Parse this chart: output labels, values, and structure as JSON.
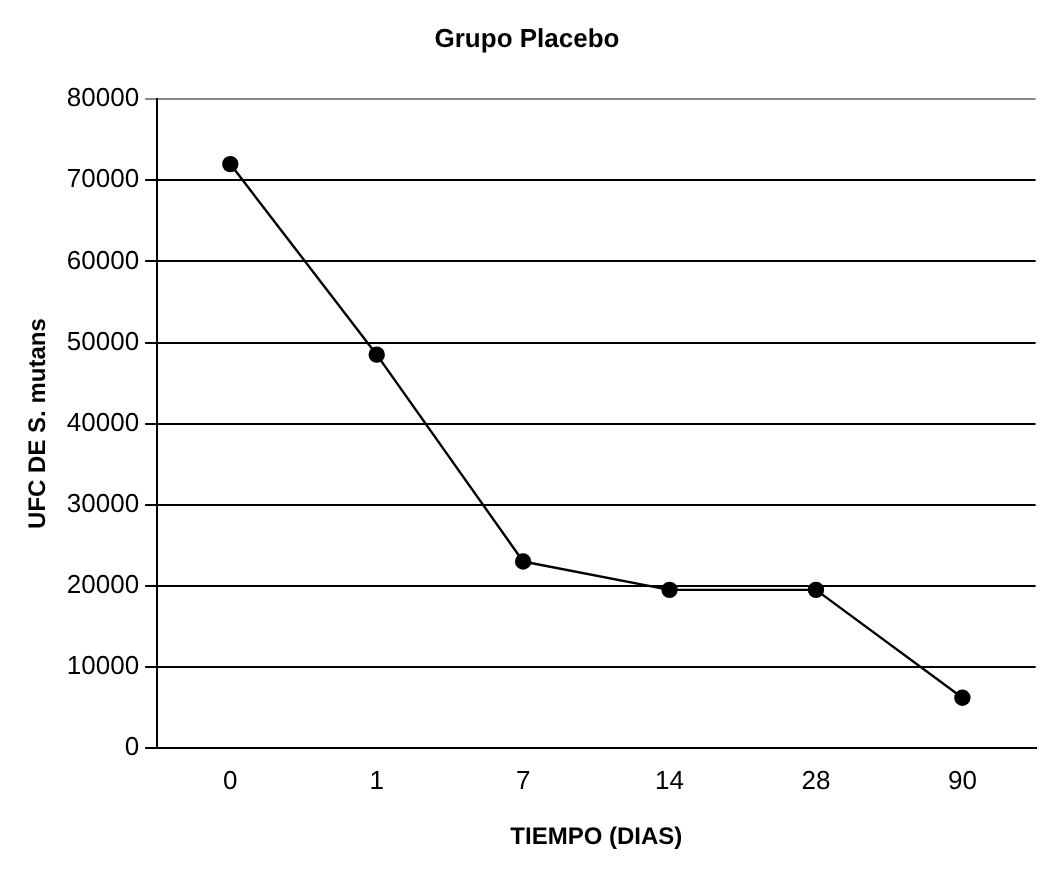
{
  "chart_data": {
    "type": "line",
    "title": "Grupo Placebo",
    "xlabel": "TIEMPO (DIAS)",
    "ylabel": "UFC DE S. mutans",
    "categories": [
      "0",
      "1",
      "7",
      "14",
      "28",
      "90"
    ],
    "series": [
      {
        "color": "#000000",
        "values": [
          72000,
          48500,
          23000,
          19500,
          19500,
          6200
        ]
      }
    ],
    "ylim": [
      0,
      80000
    ],
    "yticks": [
      0,
      10000,
      20000,
      30000,
      40000,
      50000,
      60000,
      70000,
      80000
    ],
    "grid": "y",
    "legend": false,
    "marker": "circle",
    "line_style": "solid"
  }
}
